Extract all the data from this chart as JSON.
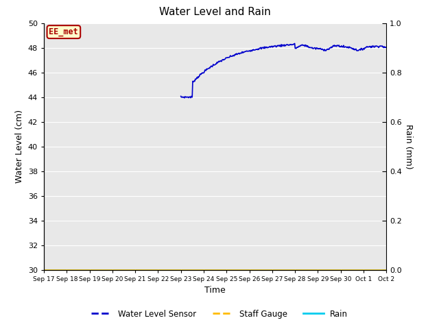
{
  "title": "Water Level and Rain",
  "ylabel_left": "Water Level (cm)",
  "ylabel_right": "Rain (mm)",
  "xlabel": "Time",
  "ylim_left": [
    30,
    50
  ],
  "ylim_right": [
    0.0,
    1.0
  ],
  "yticks_left": [
    30,
    32,
    34,
    36,
    38,
    40,
    42,
    44,
    46,
    48,
    50
  ],
  "yticks_right": [
    0.0,
    0.2,
    0.4,
    0.6,
    0.8,
    1.0
  ],
  "xtick_labels": [
    "Sep 17",
    "Sep 18",
    "Sep 19",
    "Sep 20",
    "Sep 21",
    "Sep 22",
    "Sep 23",
    "Sep 24",
    "Sep 25",
    "Sep 26",
    "Sep 27",
    "Sep 28",
    "Sep 29",
    "Sep 30",
    "Oct 1",
    "Oct 2"
  ],
  "water_level_color": "#0000cc",
  "staff_gauge_color": "#ffbb00",
  "rain_color": "#00ccee",
  "background_color": "#e8e8e8",
  "fig_background": "#ffffff",
  "annotation_text": "EE_met",
  "annotation_bg": "#ffffcc",
  "annotation_border": "#aa0000",
  "annotation_text_color": "#aa0000",
  "legend_entries": [
    "Water Level Sensor",
    "Staff Gauge",
    "Rain"
  ],
  "grid_color": "#ffffff"
}
